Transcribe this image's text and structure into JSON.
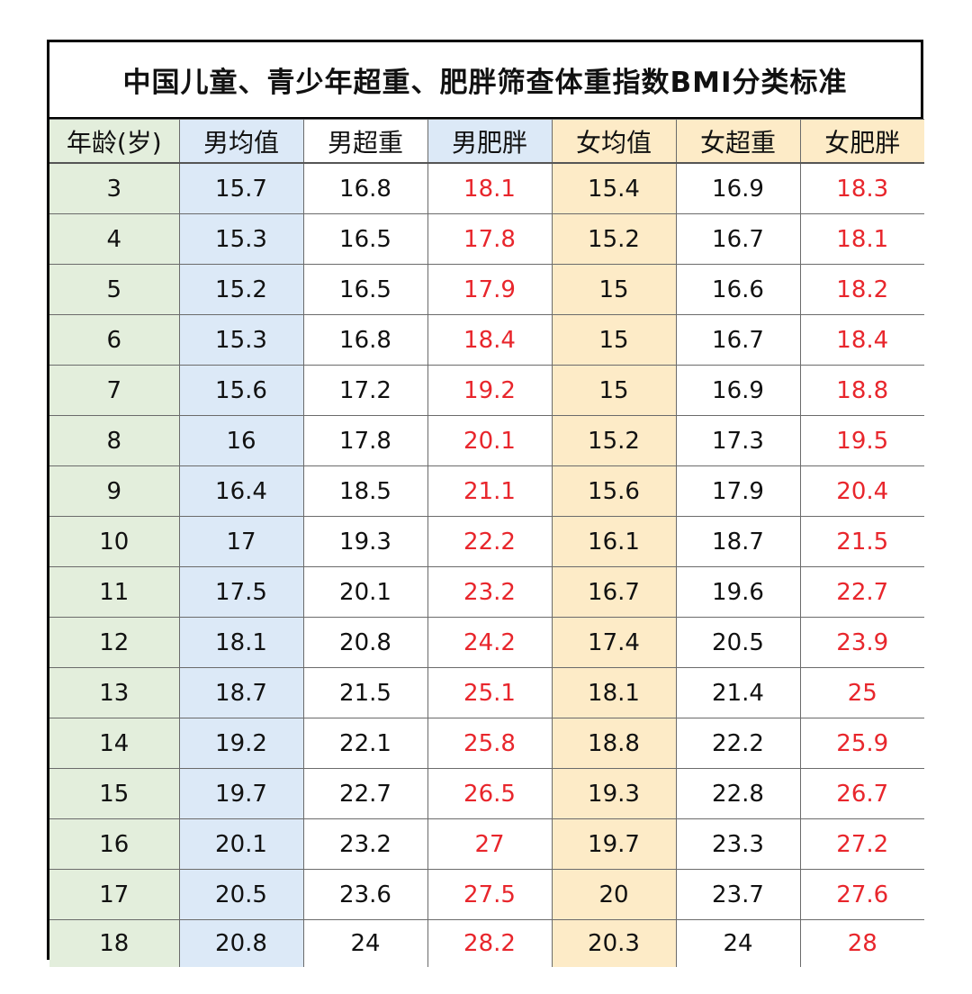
{
  "title": "中国儿童、青少年超重、肥胖筛查体重指数BMI分类标准",
  "columns": [
    "年龄(岁)",
    "男均值",
    "男超重",
    "男肥胖",
    "女均值",
    "女超重",
    "女肥胖"
  ],
  "colors": {
    "age_column": "#e3eedc",
    "male_mean_column": "#dce9f7",
    "female_mean_column": "#fdebc7",
    "obese_text": "#e8262c",
    "border": "#000000"
  },
  "rows": [
    [
      "3",
      "15.7",
      "16.8",
      "18.1",
      "15.4",
      "16.9",
      "18.3"
    ],
    [
      "4",
      "15.3",
      "16.5",
      "17.8",
      "15.2",
      "16.7",
      "18.1"
    ],
    [
      "5",
      "15.2",
      "16.5",
      "17.9",
      "15",
      "16.6",
      "18.2"
    ],
    [
      "6",
      "15.3",
      "16.8",
      "18.4",
      "15",
      "16.7",
      "18.4"
    ],
    [
      "7",
      "15.6",
      "17.2",
      "19.2",
      "15",
      "16.9",
      "18.8"
    ],
    [
      "8",
      "16",
      "17.8",
      "20.1",
      "15.2",
      "17.3",
      "19.5"
    ],
    [
      "9",
      "16.4",
      "18.5",
      "21.1",
      "15.6",
      "17.9",
      "20.4"
    ],
    [
      "10",
      "17",
      "19.3",
      "22.2",
      "16.1",
      "18.7",
      "21.5"
    ],
    [
      "11",
      "17.5",
      "20.1",
      "23.2",
      "16.7",
      "19.6",
      "22.7"
    ],
    [
      "12",
      "18.1",
      "20.8",
      "24.2",
      "17.4",
      "20.5",
      "23.9"
    ],
    [
      "13",
      "18.7",
      "21.5",
      "25.1",
      "18.1",
      "21.4",
      "25"
    ],
    [
      "14",
      "19.2",
      "22.1",
      "25.8",
      "18.8",
      "22.2",
      "25.9"
    ],
    [
      "15",
      "19.7",
      "22.7",
      "26.5",
      "19.3",
      "22.8",
      "26.7"
    ],
    [
      "16",
      "20.1",
      "23.2",
      "27",
      "19.7",
      "23.3",
      "27.2"
    ],
    [
      "17",
      "20.5",
      "23.6",
      "27.5",
      "20",
      "23.7",
      "27.6"
    ],
    [
      "18",
      "20.8",
      "24",
      "28.2",
      "20.3",
      "24",
      "28"
    ]
  ]
}
